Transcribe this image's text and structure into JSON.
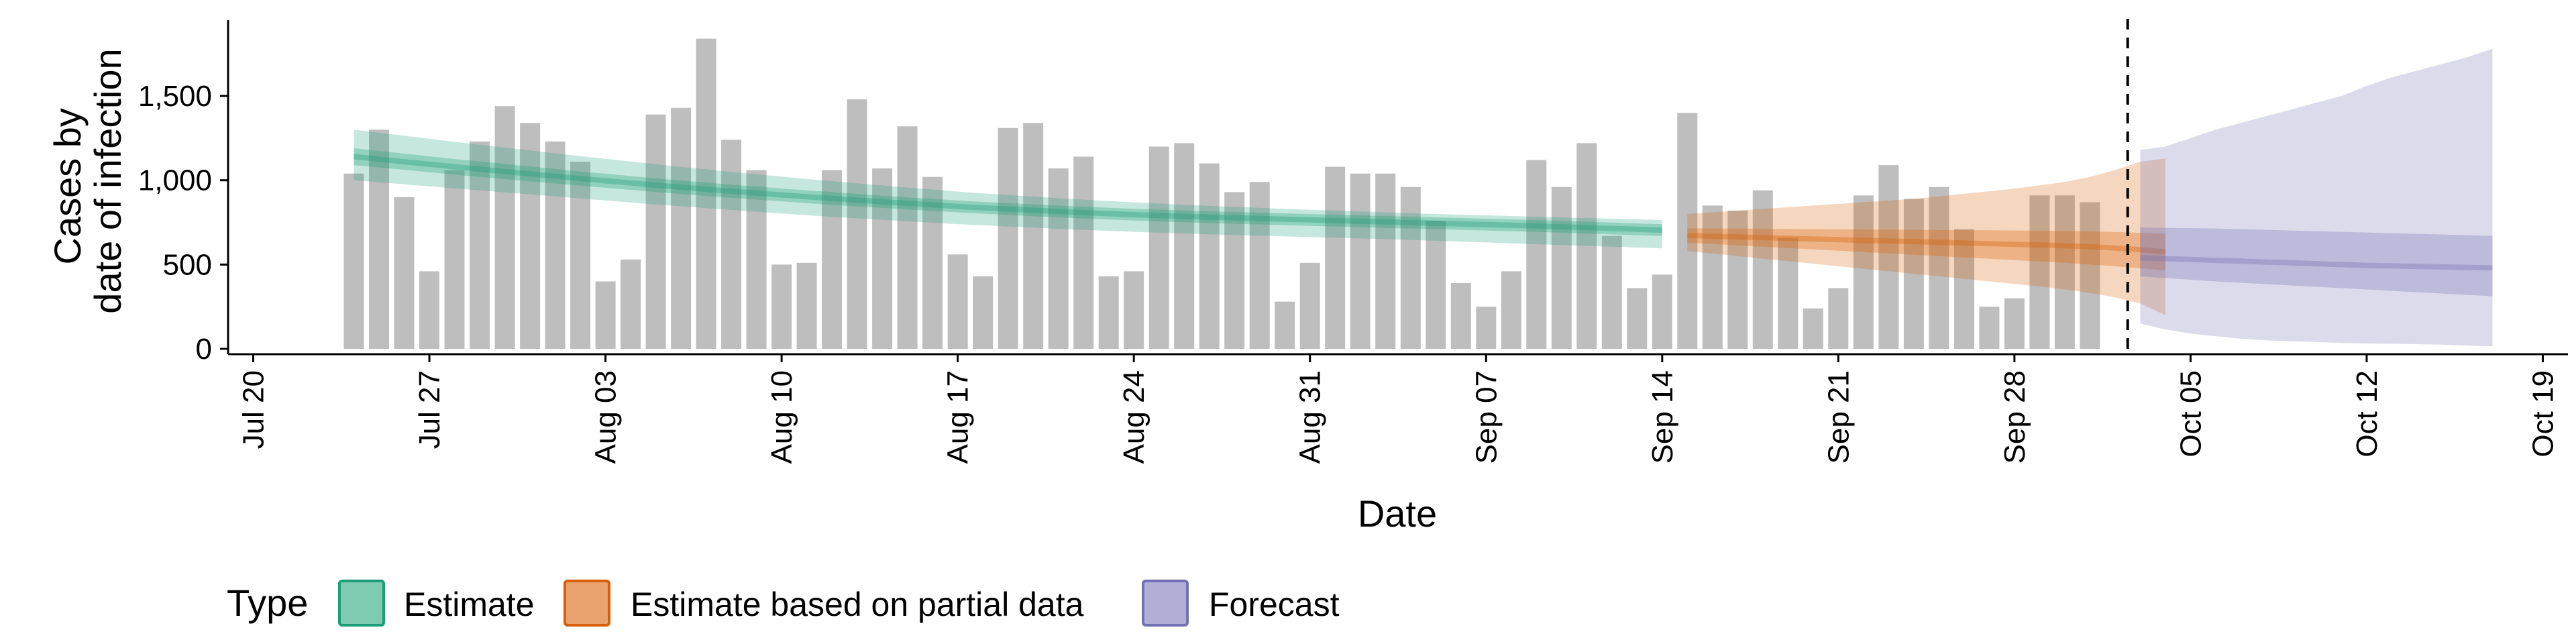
{
  "chart_data": {
    "type": "bar",
    "x_axis_label": "Date",
    "y_axis_label_lines": [
      "Cases by",
      "date of infection"
    ],
    "x_range": [
      "2020-07-19",
      "2020-10-20"
    ],
    "y_range": [
      0,
      1950
    ],
    "x_ticks": [
      {
        "date": "2020-07-20",
        "label": "Jul 20"
      },
      {
        "date": "2020-07-27",
        "label": "Jul 27"
      },
      {
        "date": "2020-08-03",
        "label": "Aug 03"
      },
      {
        "date": "2020-08-10",
        "label": "Aug 10"
      },
      {
        "date": "2020-08-17",
        "label": "Aug 17"
      },
      {
        "date": "2020-08-24",
        "label": "Aug 24"
      },
      {
        "date": "2020-08-31",
        "label": "Aug 31"
      },
      {
        "date": "2020-09-07",
        "label": "Sep 07"
      },
      {
        "date": "2020-09-14",
        "label": "Sep 14"
      },
      {
        "date": "2020-09-21",
        "label": "Sep 21"
      },
      {
        "date": "2020-09-28",
        "label": "Sep 28"
      },
      {
        "date": "2020-10-05",
        "label": "Oct 05"
      },
      {
        "date": "2020-10-12",
        "label": "Oct 12"
      },
      {
        "date": "2020-10-19",
        "label": "Oct 19"
      }
    ],
    "y_ticks": [
      {
        "value": 0,
        "label": "0"
      },
      {
        "value": 500,
        "label": "500"
      },
      {
        "value": 1000,
        "label": "1,000"
      },
      {
        "value": 1500,
        "label": "1,500"
      }
    ],
    "reported_cases": {
      "first_date": "2020-07-24",
      "color": "#bebebe",
      "values": [
        1040,
        1300,
        900,
        460,
        1060,
        1230,
        1440,
        1340,
        1230,
        1110,
        400,
        530,
        1390,
        1430,
        1840,
        1240,
        1060,
        500,
        510,
        1060,
        1480,
        1070,
        1320,
        1020,
        560,
        430,
        1310,
        1340,
        1070,
        1140,
        430,
        460,
        1200,
        1220,
        1100,
        930,
        990,
        280,
        510,
        1080,
        1040,
        1040,
        960,
        760,
        390,
        250,
        460,
        1120,
        960,
        1220,
        670,
        360,
        440,
        1400,
        850,
        820,
        940,
        660,
        240,
        360,
        910,
        1090,
        890,
        960,
        710,
        250,
        300,
        910,
        910,
        870
      ]
    },
    "forecast_date_line": "2020-10-02",
    "series": [
      {
        "name": "Estimate",
        "color": "#1b9e77",
        "first_date": "2020-07-24",
        "median": [
          1140,
          1125,
          1110,
          1095,
          1080,
          1066,
          1052,
          1038,
          1024,
          1010,
          997,
          984,
          971,
          959,
          947,
          935,
          924,
          913,
          902,
          892,
          882,
          872,
          863,
          854,
          845,
          837,
          829,
          822,
          815,
          808,
          802,
          796,
          791,
          786,
          781,
          777,
          773,
          769,
          765,
          761,
          757,
          753,
          749,
          745,
          741,
          737,
          733,
          729,
          724,
          719,
          714,
          709,
          704
        ],
        "lower_50": [
          1090,
          1076,
          1062,
          1048,
          1034,
          1020,
          1007,
          994,
          981,
          968,
          955,
          943,
          931,
          919,
          907,
          896,
          885,
          875,
          864,
          854,
          845,
          836,
          827,
          818,
          810,
          802,
          794,
          787,
          780,
          773,
          767,
          761,
          756,
          751,
          746,
          742,
          738,
          734,
          730,
          726,
          722,
          718,
          714,
          710,
          706,
          702,
          698,
          694,
          689,
          684,
          679,
          674,
          669
        ],
        "upper_50": [
          1190,
          1174,
          1158,
          1142,
          1126,
          1112,
          1097,
          1082,
          1067,
          1052,
          1039,
          1025,
          1011,
          999,
          987,
          974,
          963,
          951,
          940,
          930,
          919,
          908,
          899,
          890,
          880,
          872,
          864,
          857,
          850,
          843,
          837,
          831,
          826,
          821,
          816,
          812,
          808,
          804,
          800,
          796,
          792,
          788,
          784,
          780,
          776,
          772,
          768,
          764,
          759,
          754,
          749,
          744,
          739
        ],
        "lower_90": [
          1000,
          988,
          976,
          964,
          952,
          940,
          928,
          916,
          904,
          892,
          880,
          868,
          857,
          846,
          835,
          824,
          813,
          803,
          793,
          783,
          774,
          765,
          756,
          748,
          740,
          733,
          726,
          719,
          712,
          706,
          700,
          694,
          689,
          684,
          679,
          675,
          671,
          667,
          663,
          659,
          655,
          651,
          646,
          641,
          636,
          631,
          626,
          621,
          616,
          611,
          606,
          601,
          596
        ],
        "upper_90": [
          1300,
          1282,
          1264,
          1246,
          1228,
          1211,
          1194,
          1177,
          1160,
          1143,
          1127,
          1111,
          1095,
          1080,
          1065,
          1050,
          1036,
          1022,
          1008,
          995,
          982,
          969,
          957,
          945,
          933,
          922,
          912,
          903,
          894,
          885,
          877,
          869,
          862,
          855,
          848,
          842,
          836,
          830,
          825,
          820,
          815,
          810,
          805,
          800,
          796,
          792,
          788,
          784,
          780,
          776,
          772,
          768,
          764
        ]
      },
      {
        "name": "Estimate based on partial data",
        "color": "#d95f02",
        "first_date": "2020-09-15",
        "median": [
          672,
          668,
          664,
          660,
          656,
          652,
          648,
          644,
          640,
          636,
          632,
          628,
          624,
          620,
          616,
          612,
          606,
          598,
          588,
          575
        ],
        "lower_50": [
          630,
          622,
          614,
          606,
          598,
          590,
          582,
          574,
          566,
          558,
          550,
          542,
          534,
          526,
          518,
          510,
          500,
          490,
          478,
          465
        ],
        "upper_50": [
          715,
          714,
          713,
          712,
          711,
          710,
          709,
          708,
          707,
          706,
          705,
          704,
          703,
          702,
          701,
          700,
          697,
          693,
          688,
          683
        ],
        "lower_90": [
          580,
          565,
          550,
          535,
          520,
          505,
          490,
          475,
          460,
          445,
          430,
          415,
          400,
          385,
          370,
          352,
          332,
          305,
          270,
          200
        ],
        "upper_90": [
          800,
          810,
          820,
          830,
          840,
          850,
          860,
          870,
          880,
          890,
          905,
          920,
          935,
          950,
          970,
          990,
          1020,
          1060,
          1110,
          1130
        ]
      },
      {
        "name": "Forecast",
        "color": "#7570b3",
        "first_date": "2020-10-03",
        "median": [
          540,
          535,
          530,
          525,
          520,
          515,
          510,
          505,
          500,
          495,
          492,
          489,
          486,
          483,
          480
        ],
        "lower_50": [
          430,
          420,
          410,
          400,
          392,
          384,
          376,
          368,
          360,
          352,
          344,
          336,
          328,
          320,
          312
        ],
        "upper_50": [
          720,
          718,
          716,
          714,
          710,
          706,
          702,
          698,
          694,
          690,
          686,
          682,
          678,
          674,
          670
        ],
        "lower_90": [
          150,
          115,
          90,
          75,
          60,
          50,
          45,
          40,
          35,
          32,
          30,
          28,
          25,
          20,
          15
        ],
        "upper_90": [
          1180,
          1200,
          1250,
          1300,
          1340,
          1380,
          1420,
          1460,
          1500,
          1560,
          1610,
          1650,
          1690,
          1730,
          1780
        ]
      }
    ],
    "legend": {
      "title": "Type",
      "position": "bottom",
      "items": [
        {
          "label": "Estimate",
          "fill": "#7fcbb2",
          "border": "#1b9e77"
        },
        {
          "label": "Estimate based on partial data",
          "fill": "#e9a26d",
          "border": "#d95f02"
        },
        {
          "label": "Forecast",
          "fill": "#b1afd6",
          "border": "#7570b3"
        }
      ]
    },
    "grid": false
  }
}
